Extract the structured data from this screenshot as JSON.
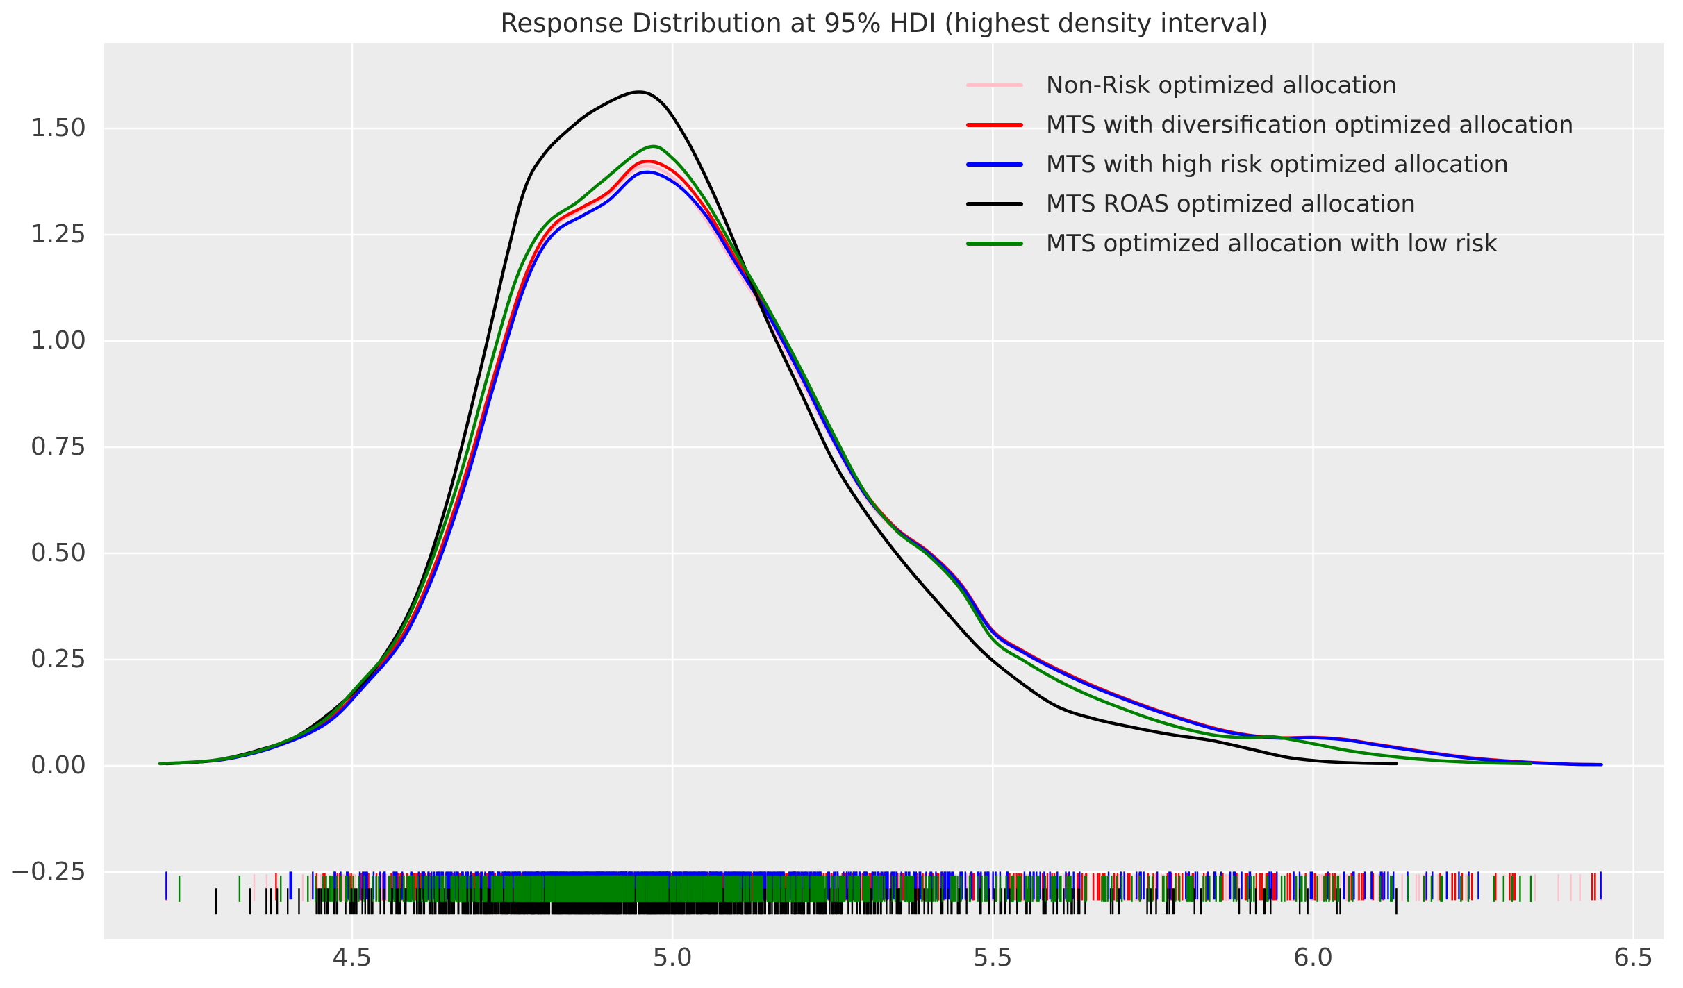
{
  "chart": {
    "title": "Response Distribution at 95% HDI (highest density interval)",
    "figure_background": "#ffffff",
    "axes_background": "#ececec",
    "grid_color": "#ffffff",
    "title_color": "#2b2b2b",
    "tick_label_color": "#3f3f3f",
    "xtick_labels": [
      "4.5",
      "5.0",
      "5.5",
      "6.0",
      "6.5"
    ],
    "ytick_labels": [
      "1.50",
      "1.25",
      "1.00",
      "0.75",
      "0.50",
      "0.25",
      "0.00",
      "−0.25"
    ]
  },
  "legend": {
    "items": [
      {
        "label": "Non-Risk optimized allocation",
        "color": "#ffc0cb"
      },
      {
        "label": "MTS with diversification optimized allocation",
        "color": "#ff0000"
      },
      {
        "label": "MTS with high risk optimized allocation",
        "color": "#0000ff"
      },
      {
        "label": "MTS ROAS optimized allocation",
        "color": "#000000"
      },
      {
        "label": "MTS optimized allocation with low risk",
        "color": "#008000"
      }
    ]
  },
  "chart_data": {
    "type": "line",
    "subtype": "kde-density-with-rug",
    "title": "Response Distribution at 95% HDI (highest density interval)",
    "xlabel": "",
    "ylabel": "",
    "xlim": [
      4.113,
      6.548
    ],
    "ylim": [
      -0.4085,
      1.701
    ],
    "xticks": [
      4.5,
      5.0,
      5.5,
      6.0,
      6.5
    ],
    "yticks": [
      1.5,
      1.25,
      1.0,
      0.75,
      0.5,
      0.25,
      0.0,
      -0.25
    ],
    "grid": true,
    "legend_position": "upper right",
    "series": [
      {
        "name": "Non-Risk optimized allocation",
        "color": "#ffc0cb",
        "points": [
          [
            4.21,
            0.005
          ],
          [
            4.3,
            0.015
          ],
          [
            4.38,
            0.046
          ],
          [
            4.46,
            0.103
          ],
          [
            4.52,
            0.19
          ],
          [
            4.58,
            0.305
          ],
          [
            4.63,
            0.47
          ],
          [
            4.68,
            0.695
          ],
          [
            4.72,
            0.905
          ],
          [
            4.76,
            1.1
          ],
          [
            4.79,
            1.21
          ],
          [
            4.82,
            1.275
          ],
          [
            4.86,
            1.31
          ],
          [
            4.9,
            1.345
          ],
          [
            4.95,
            1.41
          ],
          [
            5.0,
            1.385
          ],
          [
            5.05,
            1.29
          ],
          [
            5.1,
            1.17
          ],
          [
            5.15,
            1.05
          ],
          [
            5.2,
            0.91
          ],
          [
            5.25,
            0.765
          ],
          [
            5.3,
            0.635
          ],
          [
            5.35,
            0.552
          ],
          [
            5.4,
            0.498
          ],
          [
            5.45,
            0.422
          ],
          [
            5.5,
            0.312
          ],
          [
            5.55,
            0.263
          ],
          [
            5.6,
            0.224
          ],
          [
            5.65,
            0.19
          ],
          [
            5.7,
            0.159
          ],
          [
            5.75,
            0.131
          ],
          [
            5.8,
            0.107
          ],
          [
            5.85,
            0.086
          ],
          [
            5.9,
            0.071
          ],
          [
            5.95,
            0.066
          ],
          [
            6.0,
            0.067
          ],
          [
            6.05,
            0.062
          ],
          [
            6.1,
            0.051
          ],
          [
            6.17,
            0.035
          ],
          [
            6.25,
            0.019
          ],
          [
            6.33,
            0.009
          ],
          [
            6.4,
            0.005
          ],
          [
            6.45,
            0.003
          ]
        ]
      },
      {
        "name": "MTS with diversification optimized allocation",
        "color": "#ff0000",
        "points": [
          [
            4.21,
            0.005
          ],
          [
            4.3,
            0.015
          ],
          [
            4.38,
            0.047
          ],
          [
            4.46,
            0.105
          ],
          [
            4.52,
            0.195
          ],
          [
            4.58,
            0.31
          ],
          [
            4.63,
            0.475
          ],
          [
            4.68,
            0.7
          ],
          [
            4.72,
            0.91
          ],
          [
            4.76,
            1.11
          ],
          [
            4.79,
            1.22
          ],
          [
            4.82,
            1.28
          ],
          [
            4.86,
            1.315
          ],
          [
            4.9,
            1.35
          ],
          [
            4.95,
            1.42
          ],
          [
            5.0,
            1.4
          ],
          [
            5.05,
            1.315
          ],
          [
            5.1,
            1.19
          ],
          [
            5.15,
            1.07
          ],
          [
            5.2,
            0.93
          ],
          [
            5.25,
            0.78
          ],
          [
            5.3,
            0.645
          ],
          [
            5.35,
            0.558
          ],
          [
            5.4,
            0.503
          ],
          [
            5.45,
            0.428
          ],
          [
            5.5,
            0.318
          ],
          [
            5.55,
            0.268
          ],
          [
            5.6,
            0.228
          ],
          [
            5.65,
            0.193
          ],
          [
            5.7,
            0.162
          ],
          [
            5.75,
            0.134
          ],
          [
            5.8,
            0.109
          ],
          [
            5.85,
            0.087
          ],
          [
            5.9,
            0.072
          ],
          [
            5.95,
            0.066
          ],
          [
            6.0,
            0.067
          ],
          [
            6.05,
            0.062
          ],
          [
            6.1,
            0.05
          ],
          [
            6.17,
            0.034
          ],
          [
            6.25,
            0.018
          ],
          [
            6.33,
            0.009
          ],
          [
            6.4,
            0.004
          ],
          [
            6.44,
            0.003
          ]
        ]
      },
      {
        "name": "MTS with high risk optimized allocation",
        "color": "#0000ff",
        "points": [
          [
            4.21,
            0.005
          ],
          [
            4.3,
            0.015
          ],
          [
            4.38,
            0.045
          ],
          [
            4.46,
            0.1
          ],
          [
            4.52,
            0.19
          ],
          [
            4.58,
            0.3
          ],
          [
            4.63,
            0.46
          ],
          [
            4.68,
            0.68
          ],
          [
            4.72,
            0.89
          ],
          [
            4.76,
            1.09
          ],
          [
            4.79,
            1.2
          ],
          [
            4.82,
            1.26
          ],
          [
            4.86,
            1.295
          ],
          [
            4.9,
            1.33
          ],
          [
            4.95,
            1.395
          ],
          [
            5.0,
            1.375
          ],
          [
            5.05,
            1.3
          ],
          [
            5.1,
            1.18
          ],
          [
            5.15,
            1.06
          ],
          [
            5.2,
            0.92
          ],
          [
            5.25,
            0.77
          ],
          [
            5.3,
            0.64
          ],
          [
            5.35,
            0.555
          ],
          [
            5.4,
            0.5
          ],
          [
            5.45,
            0.425
          ],
          [
            5.5,
            0.315
          ],
          [
            5.55,
            0.265
          ],
          [
            5.6,
            0.225
          ],
          [
            5.65,
            0.19
          ],
          [
            5.7,
            0.16
          ],
          [
            5.75,
            0.132
          ],
          [
            5.8,
            0.107
          ],
          [
            5.85,
            0.085
          ],
          [
            5.9,
            0.071
          ],
          [
            5.95,
            0.065
          ],
          [
            6.0,
            0.066
          ],
          [
            6.05,
            0.061
          ],
          [
            6.1,
            0.049
          ],
          [
            6.17,
            0.033
          ],
          [
            6.25,
            0.017
          ],
          [
            6.33,
            0.008
          ],
          [
            6.4,
            0.004
          ],
          [
            6.45,
            0.003
          ]
        ]
      },
      {
        "name": "MTS ROAS optimized allocation",
        "color": "#000000",
        "points": [
          [
            4.2,
            0.005
          ],
          [
            4.28,
            0.012
          ],
          [
            4.35,
            0.035
          ],
          [
            4.42,
            0.075
          ],
          [
            4.5,
            0.17
          ],
          [
            4.55,
            0.26
          ],
          [
            4.6,
            0.4
          ],
          [
            4.65,
            0.63
          ],
          [
            4.7,
            0.93
          ],
          [
            4.74,
            1.19
          ],
          [
            4.77,
            1.36
          ],
          [
            4.8,
            1.44
          ],
          [
            4.84,
            1.5
          ],
          [
            4.88,
            1.545
          ],
          [
            4.94,
            1.585
          ],
          [
            4.98,
            1.565
          ],
          [
            5.02,
            1.48
          ],
          [
            5.06,
            1.36
          ],
          [
            5.1,
            1.22
          ],
          [
            5.15,
            1.04
          ],
          [
            5.2,
            0.88
          ],
          [
            5.25,
            0.72
          ],
          [
            5.3,
            0.6
          ],
          [
            5.36,
            0.48
          ],
          [
            5.42,
            0.375
          ],
          [
            5.48,
            0.275
          ],
          [
            5.54,
            0.2
          ],
          [
            5.6,
            0.14
          ],
          [
            5.66,
            0.11
          ],
          [
            5.72,
            0.09
          ],
          [
            5.78,
            0.073
          ],
          [
            5.84,
            0.06
          ],
          [
            5.9,
            0.04
          ],
          [
            5.96,
            0.02
          ],
          [
            6.02,
            0.01
          ],
          [
            6.08,
            0.006
          ],
          [
            6.13,
            0.005
          ]
        ]
      },
      {
        "name": "MTS optimized allocation with low risk",
        "color": "#008000",
        "points": [
          [
            4.2,
            0.005
          ],
          [
            4.29,
            0.014
          ],
          [
            4.37,
            0.043
          ],
          [
            4.45,
            0.1
          ],
          [
            4.51,
            0.19
          ],
          [
            4.57,
            0.3
          ],
          [
            4.62,
            0.465
          ],
          [
            4.67,
            0.69
          ],
          [
            4.71,
            0.91
          ],
          [
            4.75,
            1.12
          ],
          [
            4.78,
            1.225
          ],
          [
            4.81,
            1.285
          ],
          [
            4.85,
            1.325
          ],
          [
            4.89,
            1.375
          ],
          [
            4.96,
            1.455
          ],
          [
            5.0,
            1.43
          ],
          [
            5.05,
            1.335
          ],
          [
            5.1,
            1.205
          ],
          [
            5.15,
            1.075
          ],
          [
            5.2,
            0.935
          ],
          [
            5.25,
            0.785
          ],
          [
            5.3,
            0.645
          ],
          [
            5.35,
            0.553
          ],
          [
            5.4,
            0.495
          ],
          [
            5.45,
            0.415
          ],
          [
            5.5,
            0.298
          ],
          [
            5.55,
            0.246
          ],
          [
            5.6,
            0.202
          ],
          [
            5.65,
            0.166
          ],
          [
            5.7,
            0.136
          ],
          [
            5.75,
            0.109
          ],
          [
            5.8,
            0.087
          ],
          [
            5.85,
            0.071
          ],
          [
            5.9,
            0.066
          ],
          [
            5.94,
            0.068
          ],
          [
            6.0,
            0.052
          ],
          [
            6.05,
            0.037
          ],
          [
            6.1,
            0.026
          ],
          [
            6.17,
            0.015
          ],
          [
            6.25,
            0.008
          ],
          [
            6.34,
            0.005
          ]
        ]
      }
    ],
    "rug": {
      "tick_width": 2.4,
      "series": [
        {
          "name": "Non-Risk optimized allocation",
          "color": "#ffc0cb",
          "count": 850,
          "seed": 101,
          "y_top": -0.255,
          "y_bottom": -0.318,
          "min": 4.21,
          "max": 6.45
        },
        {
          "name": "MTS with diversification optimized allocation",
          "color": "#ff0000",
          "count": 850,
          "seed": 202,
          "y_top": -0.252,
          "y_bottom": -0.316,
          "min": 4.21,
          "max": 6.44
        },
        {
          "name": "MTS with high risk optimized allocation",
          "color": "#0000ff",
          "count": 850,
          "seed": 303,
          "y_top": -0.249,
          "y_bottom": -0.314,
          "min": 4.21,
          "max": 6.45
        },
        {
          "name": "MTS ROAS optimized allocation",
          "color": "#000000",
          "count": 850,
          "seed": 404,
          "y_top": -0.288,
          "y_bottom": -0.35,
          "min": 4.21,
          "max": 6.13
        },
        {
          "name": "MTS optimized allocation with low risk",
          "color": "#008000",
          "count": 850,
          "seed": 505,
          "y_top": -0.258,
          "y_bottom": -0.32,
          "min": 4.21,
          "max": 6.34
        }
      ]
    }
  }
}
